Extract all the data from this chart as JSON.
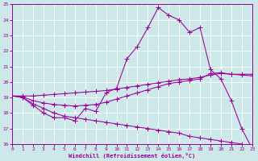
{
  "xlabel": "Windchill (Refroidissement éolien,°C)",
  "background_color": "#cce8e8",
  "grid_color": "#ffffff",
  "line_color": "#990099",
  "xlim": [
    0,
    23
  ],
  "ylim": [
    16,
    25
  ],
  "xticks": [
    0,
    1,
    2,
    3,
    4,
    5,
    6,
    7,
    8,
    9,
    10,
    11,
    12,
    13,
    14,
    15,
    16,
    17,
    18,
    19,
    20,
    21,
    22,
    23
  ],
  "yticks": [
    16,
    17,
    18,
    19,
    20,
    21,
    22,
    23,
    24,
    25
  ],
  "line1_x": [
    0,
    1,
    2,
    3,
    4,
    5,
    6,
    7,
    8,
    9,
    10,
    11,
    12,
    13,
    14,
    15,
    16,
    17,
    18,
    19,
    20,
    21,
    22,
    23
  ],
  "line1_y": [
    19.1,
    19.0,
    18.5,
    18.0,
    17.7,
    17.7,
    17.5,
    18.3,
    18.1,
    19.3,
    19.6,
    21.5,
    22.3,
    23.5,
    24.8,
    24.3,
    24.0,
    23.2,
    23.5,
    20.8,
    20.2,
    18.8,
    17.0,
    15.7
  ],
  "line2_x": [
    0,
    1,
    2,
    3,
    4,
    5,
    6,
    7,
    8,
    9,
    10,
    11,
    12,
    13,
    14,
    15,
    16,
    17,
    18,
    19,
    20,
    21,
    22,
    23
  ],
  "line2_y": [
    19.1,
    19.0,
    18.6,
    18.3,
    18.0,
    17.8,
    17.7,
    17.6,
    17.5,
    17.4,
    17.3,
    17.2,
    17.1,
    17.0,
    16.9,
    16.8,
    16.7,
    16.5,
    16.4,
    16.3,
    16.2,
    16.1,
    16.0,
    15.7
  ],
  "line3_x": [
    0,
    1,
    2,
    3,
    4,
    5,
    6,
    7,
    8,
    9,
    10,
    11,
    12,
    13,
    14,
    15,
    16,
    17,
    18,
    19,
    20,
    21,
    22,
    23
  ],
  "line3_y": [
    19.1,
    19.05,
    18.8,
    18.65,
    18.55,
    18.5,
    18.45,
    18.5,
    18.55,
    18.7,
    18.9,
    19.1,
    19.3,
    19.5,
    19.7,
    19.9,
    20.0,
    20.1,
    20.2,
    20.55,
    20.6,
    20.5,
    20.5,
    20.5
  ],
  "line4_x": [
    0,
    1,
    2,
    3,
    4,
    5,
    6,
    7,
    8,
    9,
    10,
    11,
    12,
    13,
    14,
    15,
    16,
    17,
    18,
    19,
    20,
    21,
    22,
    23
  ],
  "line4_y": [
    19.1,
    19.1,
    19.1,
    19.15,
    19.2,
    19.25,
    19.3,
    19.35,
    19.4,
    19.45,
    19.55,
    19.65,
    19.75,
    19.85,
    19.95,
    20.05,
    20.15,
    20.2,
    20.3,
    20.45,
    20.55,
    20.5,
    20.45,
    20.4
  ]
}
